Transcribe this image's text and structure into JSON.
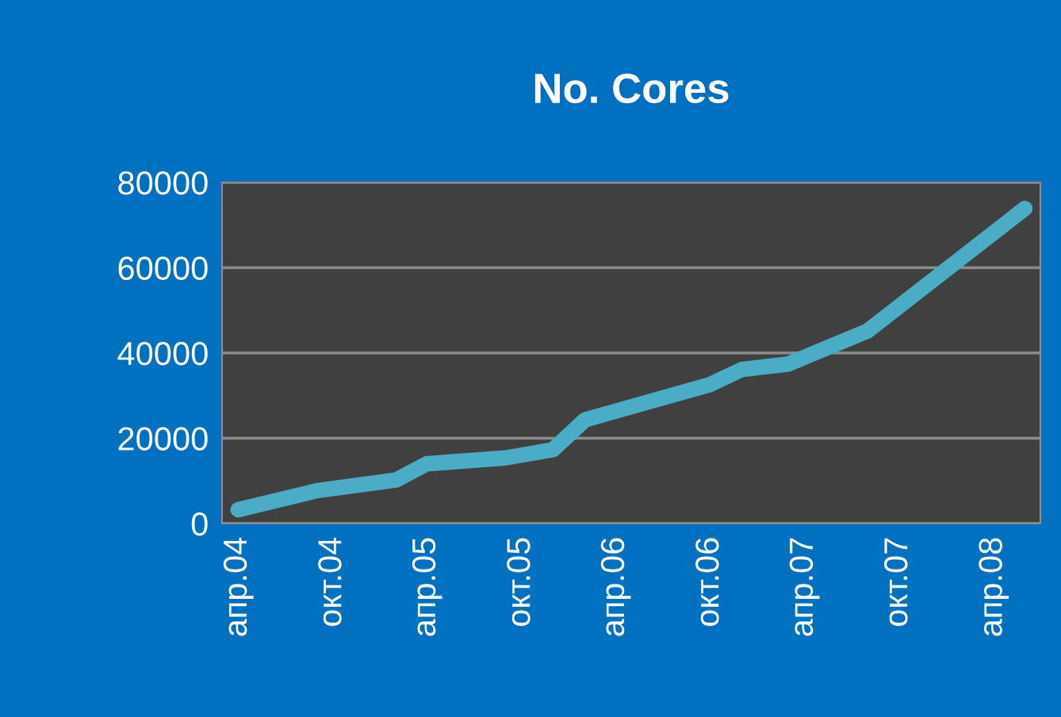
{
  "chart_data": {
    "type": "line",
    "title": "No. Cores",
    "x": [
      "2004-04",
      "2004-09",
      "2005-02",
      "2005-04",
      "2005-09",
      "2005-12",
      "2006-02",
      "2006-10",
      "2006-12",
      "2007-03",
      "2007-08",
      "2008-06"
    ],
    "series": [
      {
        "color": "#4bacc6",
        "values": [
          3200,
          7700,
          10200,
          14000,
          15400,
          17300,
          24300,
          32600,
          36100,
          37400,
          45100,
          73900
        ]
      }
    ],
    "xlim": [
      "2004-03",
      "2008-07"
    ],
    "xticks": [
      {
        "value": "2004-04",
        "label": "апр.04"
      },
      {
        "value": "2004-10",
        "label": "окт.04"
      },
      {
        "value": "2005-04",
        "label": "апр.05"
      },
      {
        "value": "2005-10",
        "label": "окт.05"
      },
      {
        "value": "2006-04",
        "label": "апр.06"
      },
      {
        "value": "2006-10",
        "label": "окт.06"
      },
      {
        "value": "2007-04",
        "label": "апр.07"
      },
      {
        "value": "2007-10",
        "label": "окт.07"
      },
      {
        "value": "2008-04",
        "label": "апр.08"
      }
    ],
    "ylim": [
      0,
      80000
    ],
    "yticks": [
      0,
      20000,
      40000,
      60000,
      80000
    ],
    "grid": "y",
    "marker": "none",
    "line_style": "solid"
  }
}
